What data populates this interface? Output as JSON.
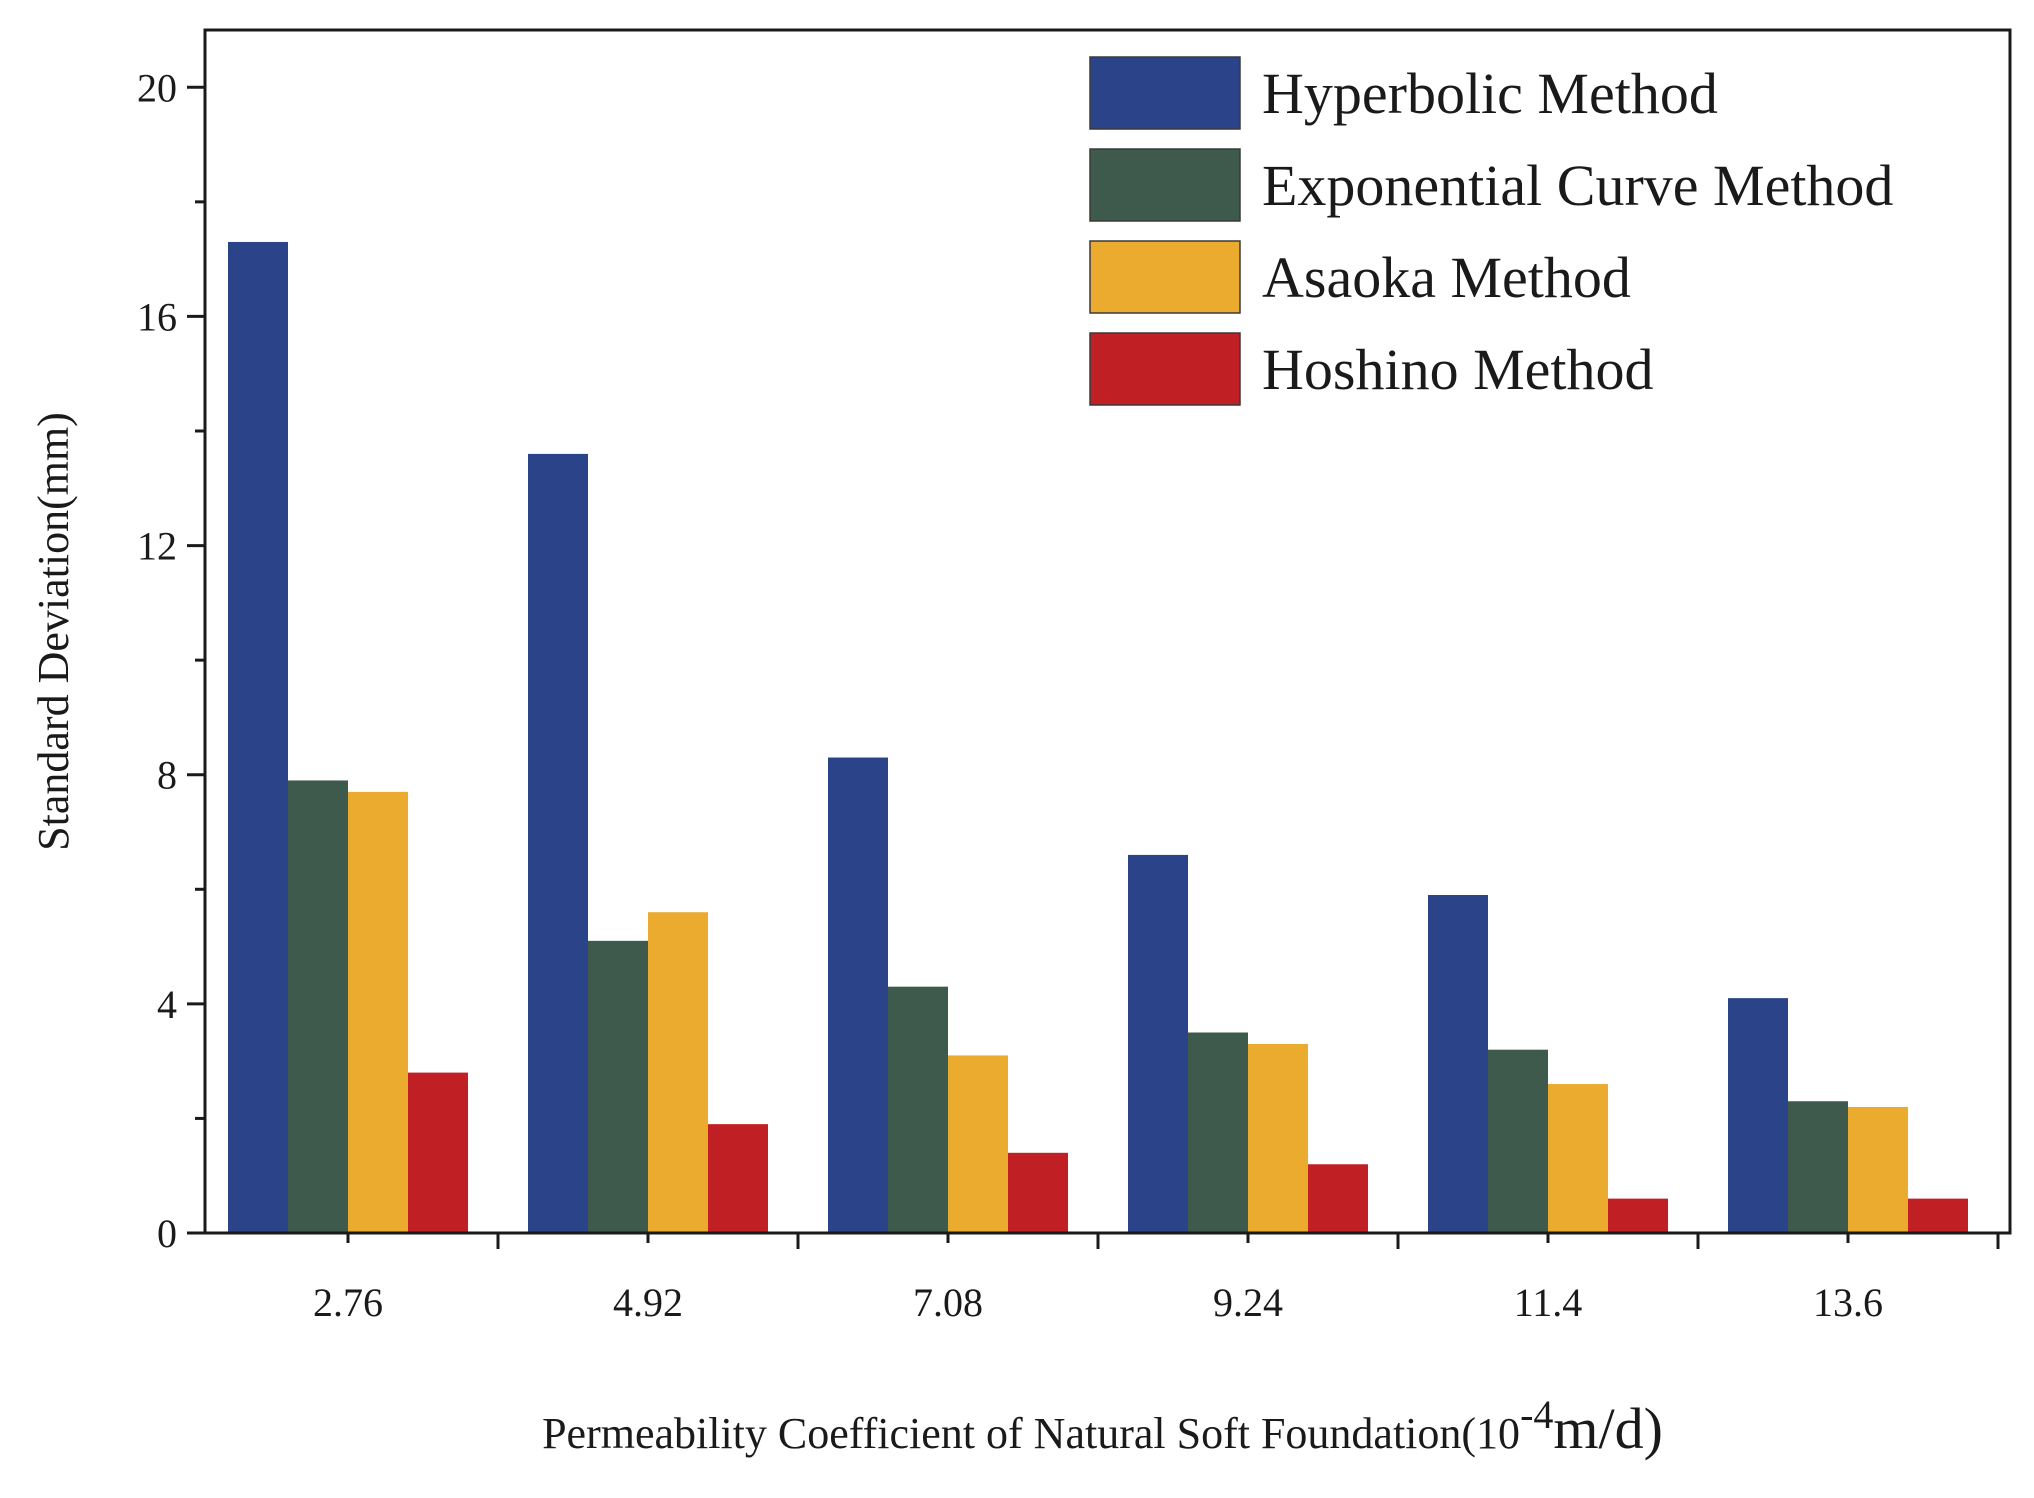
{
  "chart_data": {
    "type": "bar",
    "title": "",
    "categories": [
      "2.76",
      "4.92",
      "7.08",
      "9.24",
      "11.4",
      "13.6"
    ],
    "series": [
      {
        "name": "Hyperbolic Method",
        "color": "#2a4389",
        "values": [
          17.3,
          13.6,
          8.3,
          6.6,
          5.9,
          4.1
        ]
      },
      {
        "name": "Exponential Curve Method",
        "color": "#3e5a4c",
        "values": [
          7.9,
          5.1,
          4.3,
          3.5,
          3.2,
          2.3
        ]
      },
      {
        "name": "Asaoka Method",
        "color": "#eaab2f",
        "values": [
          7.7,
          5.6,
          3.1,
          3.3,
          2.6,
          2.2
        ]
      },
      {
        "name": "Hoshino Method",
        "color": "#c01f23",
        "values": [
          2.8,
          1.9,
          1.4,
          1.2,
          0.6,
          0.6
        ]
      }
    ],
    "xlabel_main": "Permeability Coefficient of Natural Soft Foundation(10",
    "xlabel_exp": "-4",
    "xlabel_unit": "m/d)",
    "ylabel": "Standard Deviation(mm)",
    "yticks": [
      0,
      4,
      8,
      12,
      16,
      20
    ],
    "ylim": [
      0,
      21
    ],
    "legend_position": "top-right"
  }
}
